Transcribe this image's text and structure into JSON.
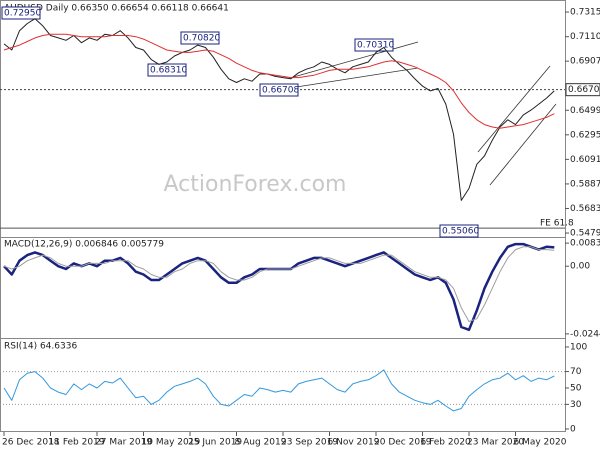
{
  "chart_data": [
    {
      "type": "line",
      "title": "AUDUSD Daily  0.66350 0.66654 0.66118 0.66641",
      "watermark": "ActionForex.com",
      "ylim": [
        0.5446,
        0.7415
      ],
      "yticks": [
        {
          "value": 0.7315,
          "label": "0.73150"
        },
        {
          "value": 0.711,
          "label": "0.71100"
        },
        {
          "value": 0.6907,
          "label": "0.69070"
        },
        {
          "value": 0.6499,
          "label": "0.64990"
        },
        {
          "value": 0.6295,
          "label": "0.62950"
        },
        {
          "value": 0.6091,
          "label": "0.60910"
        },
        {
          "value": 0.5887,
          "label": "0.58870"
        },
        {
          "value": 0.5683,
          "label": "0.56830"
        },
        {
          "value": 0.5479,
          "label": "0.54790"
        }
      ],
      "last_price": {
        "value": 0.667,
        "label": "0.66700"
      },
      "fe_level": {
        "value": 0.552,
        "label": "FE 61.8"
      },
      "annotations": [
        "0.72950",
        "0.70820",
        "0.68310",
        "0.66708",
        "0.70310",
        "0.55060"
      ],
      "series": [
        {
          "name": "AUDUSD",
          "color": "#222222",
          "values": [
            0.705,
            0.7,
            0.716,
            0.722,
            0.726,
            0.72,
            0.712,
            0.71,
            0.708,
            0.712,
            0.706,
            0.71,
            0.708,
            0.713,
            0.712,
            0.716,
            0.71,
            0.702,
            0.7,
            0.692,
            0.688,
            0.69,
            0.695,
            0.698,
            0.7,
            0.704,
            0.702,
            0.694,
            0.684,
            0.676,
            0.673,
            0.676,
            0.674,
            0.68,
            0.68,
            0.678,
            0.677,
            0.676,
            0.681,
            0.684,
            0.686,
            0.69,
            0.688,
            0.684,
            0.681,
            0.686,
            0.688,
            0.69,
            0.698,
            0.702,
            0.694,
            0.688,
            0.683,
            0.676,
            0.67,
            0.666,
            0.668,
            0.655,
            0.63,
            0.575,
            0.585,
            0.605,
            0.612,
            0.625,
            0.636,
            0.642,
            0.638,
            0.646,
            0.65,
            0.655,
            0.66,
            0.666
          ]
        },
        {
          "name": "MA",
          "color": "#e03030",
          "values": [
            0.7,
            0.702,
            0.704,
            0.707,
            0.71,
            0.712,
            0.713,
            0.713,
            0.713,
            0.712,
            0.711,
            0.711,
            0.711,
            0.711,
            0.712,
            0.712,
            0.712,
            0.711,
            0.709,
            0.706,
            0.703,
            0.7,
            0.699,
            0.698,
            0.698,
            0.699,
            0.7,
            0.699,
            0.696,
            0.693,
            0.689,
            0.686,
            0.683,
            0.681,
            0.68,
            0.679,
            0.678,
            0.677,
            0.677,
            0.678,
            0.679,
            0.681,
            0.683,
            0.684,
            0.684,
            0.684,
            0.685,
            0.686,
            0.688,
            0.69,
            0.691,
            0.69,
            0.688,
            0.686,
            0.683,
            0.68,
            0.677,
            0.673,
            0.666,
            0.656,
            0.648,
            0.642,
            0.638,
            0.636,
            0.635,
            0.636,
            0.637,
            0.638,
            0.64,
            0.642,
            0.644,
            0.647
          ]
        }
      ]
    },
    {
      "type": "line",
      "title": "MACD(12,26,9) 0.006846 0.005779",
      "ylim": [
        -0.0256,
        0.0102
      ],
      "yticks": [
        {
          "value": 0.008354,
          "label": "0.008354"
        },
        {
          "value": 0,
          "label": "0.00"
        },
        {
          "value": -0.02447,
          "label": "-0.02447"
        }
      ],
      "series": [
        {
          "name": "MACD",
          "color": "#1a237e",
          "values": [
            0.0,
            -0.003,
            0.002,
            0.004,
            0.005,
            0.004,
            0.002,
            0.0,
            -0.001,
            0.001,
            0.0,
            0.001,
            0.0,
            0.002,
            0.002,
            0.003,
            0.001,
            -0.002,
            -0.003,
            -0.005,
            -0.005,
            -0.003,
            -0.001,
            0.001,
            0.002,
            0.003,
            0.002,
            -0.001,
            -0.004,
            -0.006,
            -0.006,
            -0.004,
            -0.003,
            -0.001,
            -0.001,
            -0.001,
            -0.001,
            -0.001,
            0.001,
            0.002,
            0.003,
            0.003,
            0.002,
            0.001,
            0.0,
            0.001,
            0.002,
            0.003,
            0.004,
            0.005,
            0.003,
            0.001,
            -0.001,
            -0.003,
            -0.004,
            -0.005,
            -0.004,
            -0.006,
            -0.012,
            -0.022,
            -0.023,
            -0.016,
            -0.008,
            -0.002,
            0.003,
            0.007,
            0.008,
            0.008,
            0.007,
            0.006,
            0.007,
            0.0068
          ]
        },
        {
          "name": "Signal",
          "color": "#9e9e9e",
          "values": [
            0.0,
            -0.001,
            0.0,
            0.002,
            0.003,
            0.004,
            0.003,
            0.001,
            0.0,
            0.0,
            0.0,
            0.001,
            0.001,
            0.001,
            0.002,
            0.002,
            0.002,
            0.0,
            -0.001,
            -0.003,
            -0.004,
            -0.004,
            -0.002,
            -0.001,
            0.001,
            0.002,
            0.002,
            0.001,
            -0.002,
            -0.004,
            -0.005,
            -0.005,
            -0.004,
            -0.002,
            -0.001,
            -0.001,
            -0.001,
            -0.001,
            0.0,
            0.001,
            0.002,
            0.003,
            0.003,
            0.002,
            0.001,
            0.001,
            0.001,
            0.002,
            0.003,
            0.004,
            0.004,
            0.002,
            0.0,
            -0.002,
            -0.003,
            -0.004,
            -0.004,
            -0.005,
            -0.008,
            -0.015,
            -0.02,
            -0.019,
            -0.014,
            -0.008,
            -0.002,
            0.003,
            0.006,
            0.007,
            0.007,
            0.006,
            0.006,
            0.0058
          ]
        }
      ]
    },
    {
      "type": "line",
      "title": "RSI(14) 64.6336",
      "ylim": [
        -3.7,
        108.5
      ],
      "yticks": [
        100,
        70,
        50,
        30,
        0
      ],
      "dotted_levels": [
        70,
        30
      ],
      "categories": [
        "26 Dec 2018",
        null,
        null,
        null,
        null,
        null,
        "11 Feb 2019",
        null,
        null,
        null,
        null,
        null,
        "27 Mar 2019",
        null,
        null,
        null,
        null,
        null,
        "10 May 2019",
        null,
        null,
        null,
        null,
        null,
        "25 Jun 2019",
        null,
        null,
        null,
        null,
        null,
        "8 Aug 2019",
        null,
        null,
        null,
        null,
        null,
        "23 Sep 2019",
        null,
        null,
        null,
        null,
        null,
        "6 Nov 2019",
        null,
        null,
        null,
        null,
        null,
        "20 Dec 2019",
        null,
        null,
        null,
        null,
        null,
        "6 Feb 2020",
        null,
        null,
        null,
        null,
        null,
        "23 Mar 2020",
        null,
        null,
        null,
        null,
        null,
        "6 May 2020",
        null,
        null,
        null,
        null,
        null
      ],
      "series": [
        {
          "name": "RSI",
          "color": "#3399dd",
          "values": [
            50,
            35,
            60,
            68,
            70,
            62,
            50,
            45,
            42,
            55,
            48,
            55,
            50,
            58,
            56,
            62,
            50,
            38,
            40,
            30,
            35,
            45,
            52,
            55,
            58,
            62,
            55,
            40,
            30,
            28,
            35,
            42,
            40,
            50,
            48,
            45,
            47,
            45,
            55,
            58,
            60,
            62,
            55,
            48,
            45,
            55,
            58,
            60,
            65,
            72,
            55,
            45,
            40,
            35,
            32,
            30,
            35,
            28,
            22,
            25,
            40,
            48,
            55,
            60,
            62,
            68,
            60,
            65,
            58,
            62,
            60,
            64.6336
          ]
        }
      ]
    }
  ]
}
